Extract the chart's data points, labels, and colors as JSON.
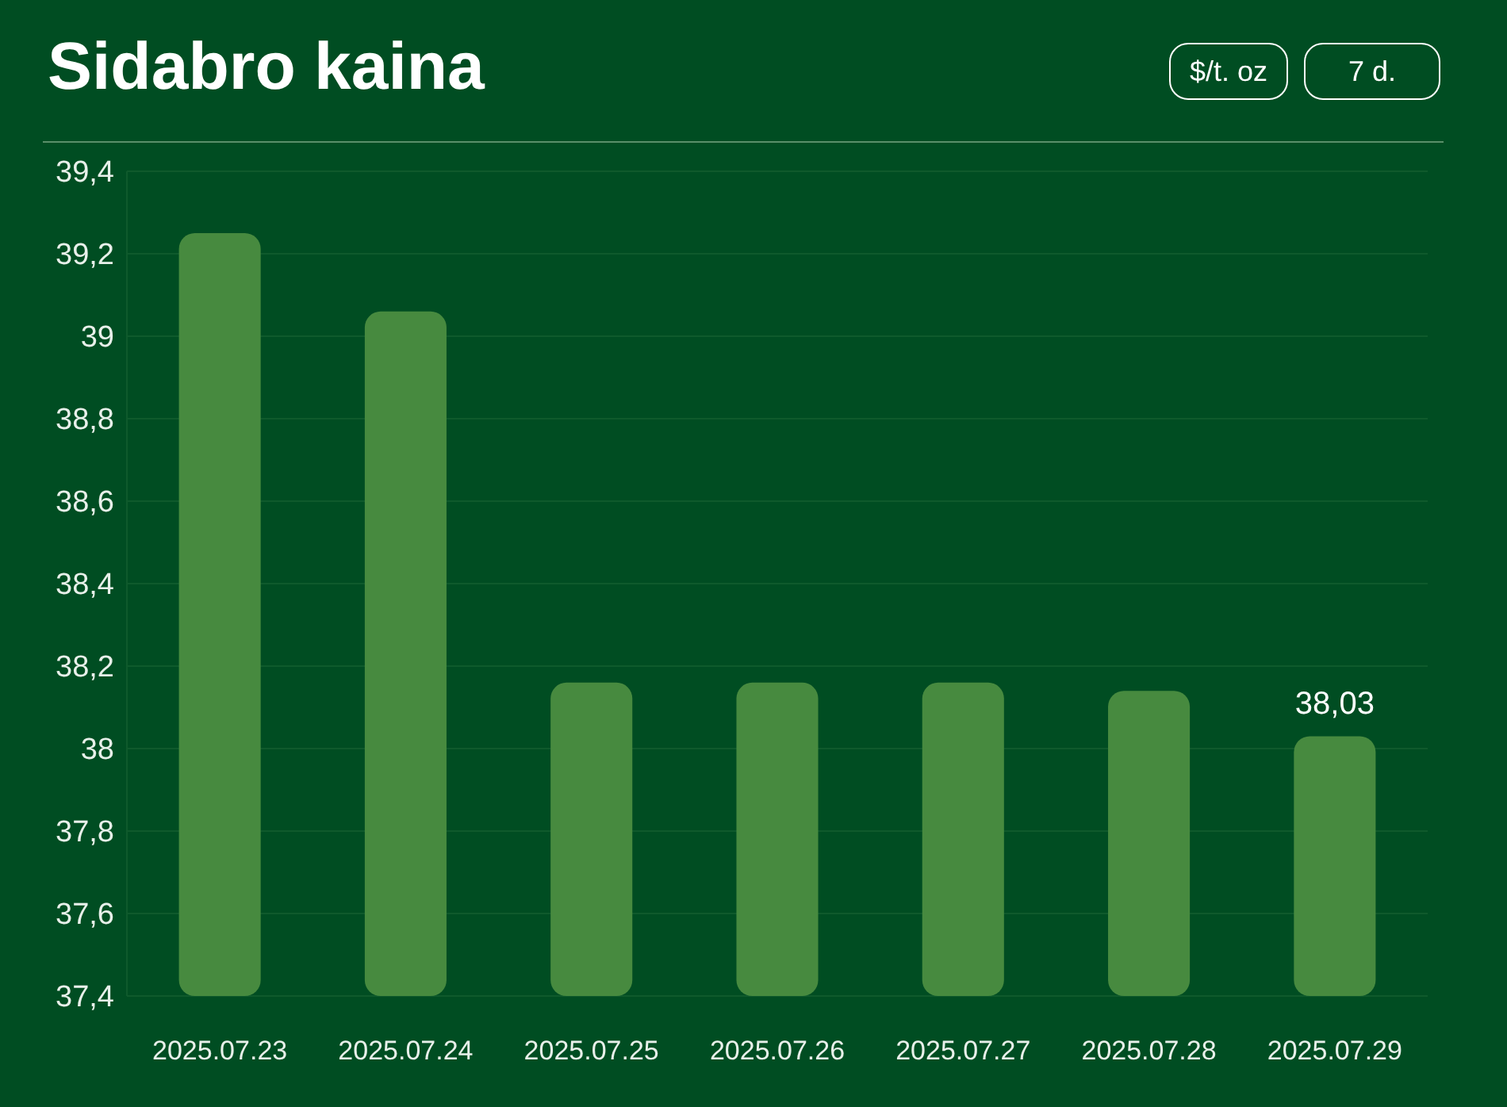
{
  "chart_data": {
    "type": "bar",
    "title": "Sidabro kaina",
    "annotations": [
      "$/t. oz",
      "7 d."
    ],
    "categories": [
      "2025.07.23",
      "2025.07.24",
      "2025.07.25",
      "2025.07.26",
      "2025.07.27",
      "2025.07.28",
      "2025.07.29"
    ],
    "values": [
      39.25,
      39.06,
      38.16,
      38.16,
      38.16,
      38.14,
      38.03
    ],
    "value_labels": [
      null,
      null,
      null,
      null,
      null,
      null,
      "38,03"
    ],
    "color": "#478a3f",
    "ylim": [
      37.4,
      39.4
    ],
    "yticks": [
      {
        "value": 37.4,
        "label": "37,4"
      },
      {
        "value": 37.6,
        "label": "37,6"
      },
      {
        "value": 37.8,
        "label": "37,8"
      },
      {
        "value": 38,
        "label": "38"
      },
      {
        "value": 38.2,
        "label": "38,2"
      },
      {
        "value": 38.4,
        "label": "38,4"
      },
      {
        "value": 38.6,
        "label": "38,6"
      },
      {
        "value": 38.8,
        "label": "38,8"
      },
      {
        "value": 39,
        "label": "39"
      },
      {
        "value": 39.2,
        "label": "39,2"
      },
      {
        "value": 39.4,
        "label": "39,4"
      }
    ],
    "grid": "y",
    "legend": false
  }
}
